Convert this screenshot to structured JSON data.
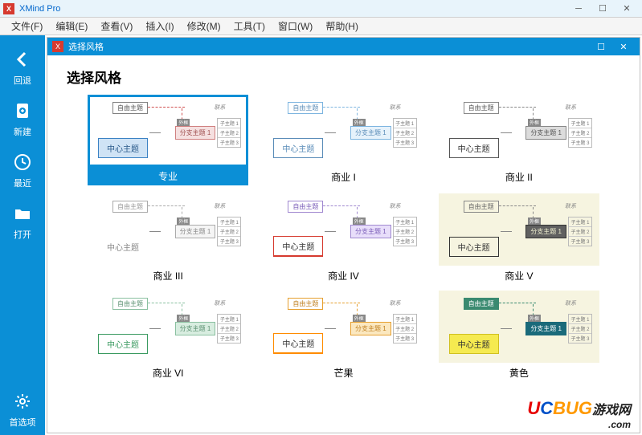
{
  "app": {
    "title": "XMind Pro"
  },
  "menu": [
    "文件(F)",
    "编辑(E)",
    "查看(V)",
    "插入(I)",
    "修改(M)",
    "工具(T)",
    "窗口(W)",
    "帮助(H)"
  ],
  "sidebar": [
    {
      "label": "回退",
      "icon": "back"
    },
    {
      "label": "新建",
      "icon": "new"
    },
    {
      "label": "最近",
      "icon": "recent"
    },
    {
      "label": "打开",
      "icon": "open"
    }
  ],
  "sidebar_bottom": {
    "label": "首选项",
    "icon": "settings"
  },
  "dialog": {
    "title": "选择风格",
    "page_title": "选择风格"
  },
  "mindmap_labels": {
    "free": "自由主题",
    "center": "中心主题",
    "branch": "分支主题 1",
    "rel": "联系",
    "sub1": "子主题 1",
    "sub2": "子主题 2",
    "sub3": "子主题 3",
    "boundary": "外框"
  },
  "styles": [
    {
      "name": "专业",
      "selected": true,
      "bg": "#ffffff",
      "free_border": "#808080",
      "free_fill": "#ffffff",
      "free_text": "#555555",
      "center_border": "#3b82c4",
      "center_fill": "#cfe3f5",
      "center_text": "#2a5a8a",
      "branch_border": "#d08080",
      "branch_fill": "#f5e0e0",
      "branch_text": "#a05050",
      "arrow_color": "#d05050"
    },
    {
      "name": "商业 I",
      "selected": false,
      "bg": "#ffffff",
      "free_border": "#7db5e0",
      "free_fill": "#ffffff",
      "free_text": "#5a8cb8",
      "center_border": "#5a8cb8",
      "center_fill": "#ffffff",
      "center_text": "#5a8cb8",
      "branch_border": "#7db5e0",
      "branch_fill": "#e6f2fb",
      "branch_text": "#5a8cb8",
      "arrow_color": "#7db5e0"
    },
    {
      "name": "商业 II",
      "selected": false,
      "bg": "#ffffff",
      "free_border": "#888888",
      "free_fill": "#ffffff",
      "free_text": "#555555",
      "center_border": "#555555",
      "center_fill": "#ffffff",
      "center_text": "#333333",
      "branch_border": "#888888",
      "branch_fill": "#dcdcdc",
      "branch_text": "#555555",
      "arrow_color": "#888888"
    },
    {
      "name": "商业 III",
      "selected": false,
      "bg": "#ffffff",
      "free_border": "#aaaaaa",
      "free_fill": "#ffffff",
      "free_text": "#999999",
      "center_border": "#ffffff",
      "center_fill": "#ffffff",
      "center_text": "#888888",
      "branch_border": "#aaaaaa",
      "branch_fill": "#f5f5f5",
      "branch_text": "#888888",
      "arrow_color": "#aaaaaa"
    },
    {
      "name": "商业 IV",
      "selected": false,
      "bg": "#ffffff",
      "free_border": "#a088d0",
      "free_fill": "#ffffff",
      "free_text": "#7a5cb8",
      "center_border": "#d63a2f",
      "center_fill": "#ffffff",
      "center_text": "#333333",
      "branch_border": "#a088d0",
      "branch_fill": "#e8defa",
      "branch_text": "#7a5cb8",
      "arrow_color": "#a088d0",
      "underline": "#d63a2f"
    },
    {
      "name": "商业 V",
      "selected": false,
      "bg": "#f6f4e0",
      "free_border": "#888888",
      "free_fill": "#f6f4e0",
      "free_text": "#666666",
      "center_border": "#333333",
      "center_fill": "#f6f4e0",
      "center_text": "#333333",
      "branch_border": "#333333",
      "branch_fill": "#606060",
      "branch_text": "#f0f0d0",
      "arrow_color": "#888888"
    },
    {
      "name": "商业 VI",
      "selected": false,
      "bg": "#ffffff",
      "free_border": "#8ac0a0",
      "free_fill": "#ffffff",
      "free_text": "#5a9070",
      "center_border": "#3a9a60",
      "center_fill": "#ffffff",
      "center_text": "#3a9a60",
      "branch_border": "#8ac0a0",
      "branch_fill": "#d8ede0",
      "branch_text": "#5a9070",
      "arrow_color": "#8ac0a0"
    },
    {
      "name": "芒果",
      "selected": false,
      "bg": "#ffffff",
      "free_border": "#e6a030",
      "free_fill": "#ffffff",
      "free_text": "#c08020",
      "center_border": "#ff8c00",
      "center_fill": "#ffffff",
      "center_text": "#333333",
      "branch_border": "#e6a030",
      "branch_fill": "#fbe8c0",
      "branch_text": "#c08020",
      "arrow_color": "#e6a030",
      "underline": "#ff8c00"
    },
    {
      "name": "黄色",
      "selected": false,
      "bg": "#f6f4e0",
      "free_border": "#3a8a70",
      "free_fill": "#3a8a70",
      "free_text": "#ffffff",
      "center_border": "#d0c020",
      "center_fill": "#f5ea50",
      "center_text": "#333333",
      "branch_border": "#1a6a7a",
      "branch_fill": "#1a6a7a",
      "branch_text": "#ffffff",
      "arrow_color": "#3a8a70"
    }
  ],
  "watermark": {
    "text": "UCBUG",
    "suffix": "游戏网",
    "dot": ".com"
  }
}
